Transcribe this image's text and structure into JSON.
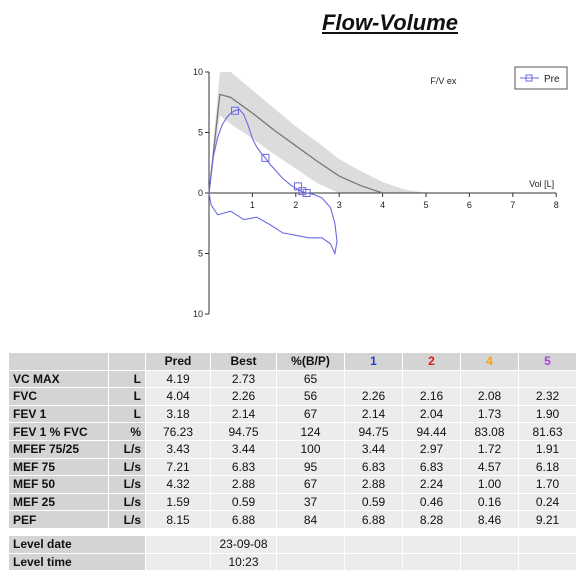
{
  "title": "Flow-Volume",
  "chart_data": {
    "type": "line",
    "title": "Flow-Volume",
    "xlabel": "Vol [L]",
    "ylabel": "",
    "annotation": "F/V ex",
    "xlim": [
      0,
      8
    ],
    "ylim": [
      -10,
      10
    ],
    "xticks": [
      1,
      2,
      3,
      4,
      5,
      6,
      7,
      8
    ],
    "yticks": [
      10,
      5,
      0,
      5,
      10
    ],
    "ytick_values": [
      10,
      5,
      0,
      -5,
      -10
    ],
    "legend": {
      "position": "top-right",
      "entries": [
        "Pre"
      ]
    },
    "series": [
      {
        "name": "Pre",
        "color": "#6a6ae0",
        "expiratory": {
          "x": [
            0.0,
            0.05,
            0.1,
            0.2,
            0.3,
            0.4,
            0.5,
            0.6,
            0.7,
            0.8,
            0.9,
            1.0,
            1.1,
            1.2,
            1.3,
            1.4,
            1.5,
            1.6,
            1.7,
            1.8,
            1.9,
            2.0,
            2.05,
            2.1,
            2.15,
            2.2,
            2.25
          ],
          "y": [
            0.0,
            1.5,
            3.0,
            4.6,
            5.6,
            6.2,
            6.6,
            6.8,
            6.9,
            6.5,
            5.6,
            4.5,
            3.8,
            3.3,
            2.9,
            2.4,
            2.0,
            1.6,
            1.2,
            0.9,
            0.6,
            0.4,
            0.3,
            0.2,
            0.1,
            0.05,
            0.0
          ]
        },
        "inspiratory": {
          "x": [
            0.0,
            0.05,
            0.2,
            0.5,
            0.8,
            1.1,
            1.4,
            1.7,
            2.0,
            2.3,
            2.6,
            2.8,
            2.9,
            2.95,
            2.9,
            2.8,
            2.6,
            2.4,
            2.26
          ],
          "y": [
            0.0,
            -1.0,
            -1.8,
            -1.5,
            -2.2,
            -2.0,
            -2.6,
            -3.3,
            -3.5,
            -3.7,
            -3.7,
            -4.2,
            -5.0,
            -4.0,
            -2.5,
            -1.2,
            -0.4,
            -0.1,
            0.0
          ]
        },
        "markers": {
          "x": [
            0.6,
            1.3,
            2.05,
            2.15,
            2.25
          ],
          "y": [
            6.8,
            2.9,
            0.55,
            0.15,
            0.0
          ]
        }
      },
      {
        "name": "",
        "color": "#777777",
        "role": "predicted",
        "x": [
          0.0,
          0.25,
          0.5,
          1.0,
          1.5,
          2.0,
          2.5,
          3.0,
          3.5,
          4.0
        ],
        "y": [
          0.0,
          8.15,
          7.9,
          6.6,
          5.2,
          3.9,
          2.6,
          1.4,
          0.6,
          0.0
        ]
      },
      {
        "name": "",
        "color": "#dcdcdc",
        "role": "normal-range",
        "upper": {
          "x": [
            0.0,
            0.25,
            0.5,
            1.0,
            1.5,
            2.0,
            2.5,
            3.0,
            3.5,
            4.0,
            4.5,
            5.0
          ],
          "y": [
            0.0,
            10.0,
            10.0,
            8.5,
            7.0,
            5.5,
            4.2,
            2.8,
            1.8,
            0.9,
            0.3,
            0.0
          ]
        },
        "lower": {
          "x": [
            0.0,
            0.25,
            0.5,
            1.0,
            1.5,
            2.0,
            2.5,
            3.0
          ],
          "y": [
            0.0,
            6.4,
            5.7,
            4.5,
            3.2,
            2.0,
            0.8,
            0.0
          ]
        }
      }
    ]
  },
  "table": {
    "headers": [
      "",
      "",
      "Pred",
      "Best",
      "%(B/P)",
      "1",
      "2",
      "4",
      "5"
    ],
    "header_colors": [
      "#111111",
      "#111111",
      "#111111",
      "#111111",
      "#111111",
      "#1f3fd0",
      "#e01818",
      "#f0a020",
      "#b040e0"
    ],
    "rows": [
      {
        "name": "VC MAX",
        "unit": "L",
        "values": [
          "4.19",
          "2.73",
          "65",
          "",
          "",
          "",
          ""
        ]
      },
      {
        "name": "FVC",
        "unit": "L",
        "values": [
          "4.04",
          "2.26",
          "56",
          "2.26",
          "2.16",
          "2.08",
          "2.32"
        ]
      },
      {
        "name": "FEV 1",
        "unit": "L",
        "values": [
          "3.18",
          "2.14",
          "67",
          "2.14",
          "2.04",
          "1.73",
          "1.90"
        ]
      },
      {
        "name": "FEV 1 % FVC",
        "unit": "%",
        "values": [
          "76.23",
          "94.75",
          "124",
          "94.75",
          "94.44",
          "83.08",
          "81.63"
        ]
      },
      {
        "name": "MFEF 75/25",
        "unit": "L/s",
        "values": [
          "3.43",
          "3.44",
          "100",
          "3.44",
          "2.97",
          "1.72",
          "1.91"
        ]
      },
      {
        "name": "MEF 75",
        "unit": "L/s",
        "values": [
          "7.21",
          "6.83",
          "95",
          "6.83",
          "6.83",
          "4.57",
          "6.18"
        ]
      },
      {
        "name": "MEF 50",
        "unit": "L/s",
        "values": [
          "4.32",
          "2.88",
          "67",
          "2.88",
          "2.24",
          "1.00",
          "1.70"
        ]
      },
      {
        "name": "MEF 25",
        "unit": "L/s",
        "values": [
          "1.59",
          "0.59",
          "37",
          "0.59",
          "0.46",
          "0.16",
          "0.24"
        ]
      },
      {
        "name": "PEF",
        "unit": "L/s",
        "values": [
          "8.15",
          "6.88",
          "84",
          "6.88",
          "8.28",
          "8.46",
          "9.21"
        ]
      }
    ],
    "level_rows": [
      {
        "name": "Level date",
        "value": "23-09-08"
      },
      {
        "name": "Level time",
        "value": "10:23"
      }
    ]
  }
}
